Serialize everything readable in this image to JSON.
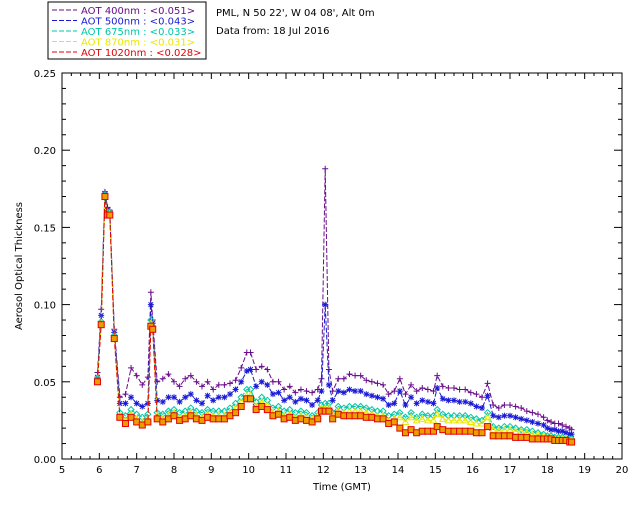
{
  "header": {
    "site": "PML, N 50 22', W 04 08', Alt 0m",
    "date": "Data from: 18 Jul 2016"
  },
  "chart_data": {
    "type": "line",
    "title": "",
    "xlabel": "Time (GMT)",
    "ylabel": "Aerosol Optical Thickness",
    "xlim": [
      5,
      20
    ],
    "ylim": [
      0,
      0.25
    ],
    "xticks": [
      "5",
      "6",
      "7",
      "8",
      "9",
      "10",
      "11",
      "12",
      "13",
      "14",
      "15",
      "16",
      "17",
      "18",
      "19",
      "20"
    ],
    "yticks": [
      "0.00",
      "0.05",
      "0.10",
      "0.15",
      "0.20",
      "0.25"
    ],
    "legend_position": "top-left outside plot",
    "x": [
      5.95,
      6.05,
      6.15,
      6.22,
      6.28,
      6.4,
      6.55,
      6.7,
      6.85,
      7.0,
      7.15,
      7.3,
      7.38,
      7.43,
      7.55,
      7.7,
      7.85,
      8.0,
      8.15,
      8.3,
      8.45,
      8.6,
      8.75,
      8.9,
      9.05,
      9.2,
      9.35,
      9.5,
      9.65,
      9.8,
      9.95,
      10.05,
      10.2,
      10.35,
      10.5,
      10.65,
      10.8,
      10.95,
      11.1,
      11.25,
      11.4,
      11.55,
      11.7,
      11.85,
      11.95,
      12.05,
      12.15,
      12.25,
      12.4,
      12.55,
      12.7,
      12.85,
      13.0,
      13.15,
      13.3,
      13.45,
      13.6,
      13.75,
      13.9,
      14.05,
      14.2,
      14.35,
      14.5,
      14.65,
      14.8,
      14.95,
      15.05,
      15.2,
      15.35,
      15.5,
      15.65,
      15.8,
      15.95,
      16.1,
      16.25,
      16.4,
      16.55,
      16.7,
      16.85,
      17.0,
      17.15,
      17.3,
      17.45,
      17.6,
      17.75,
      17.9,
      18.0,
      18.1,
      18.2,
      18.3,
      18.4,
      18.5,
      18.6,
      18.65
    ],
    "series": [
      {
        "name": "AOT  400nm : <0.051>",
        "color": "#6a0d8a",
        "marker": "plus",
        "values": [
          0.056,
          0.097,
          0.173,
          0.163,
          0.161,
          0.084,
          0.04,
          0.042,
          0.059,
          0.054,
          0.048,
          0.053,
          0.108,
          0.09,
          0.05,
          0.052,
          0.055,
          0.05,
          0.047,
          0.052,
          0.054,
          0.05,
          0.047,
          0.05,
          0.045,
          0.048,
          0.048,
          0.049,
          0.051,
          0.059,
          0.069,
          0.069,
          0.058,
          0.06,
          0.058,
          0.05,
          0.05,
          0.045,
          0.047,
          0.043,
          0.045,
          0.044,
          0.043,
          0.045,
          0.052,
          0.188,
          0.058,
          0.044,
          0.052,
          0.052,
          0.055,
          0.054,
          0.054,
          0.051,
          0.05,
          0.049,
          0.048,
          0.042,
          0.044,
          0.052,
          0.042,
          0.048,
          0.044,
          0.046,
          0.045,
          0.044,
          0.054,
          0.047,
          0.046,
          0.046,
          0.045,
          0.045,
          0.043,
          0.042,
          0.04,
          0.049,
          0.035,
          0.033,
          0.035,
          0.035,
          0.034,
          0.033,
          0.031,
          0.03,
          0.029,
          0.027,
          0.025,
          0.024,
          0.023,
          0.023,
          0.022,
          0.021,
          0.02,
          0.019
        ]
      },
      {
        "name": "AOT  500nm : <0.043>",
        "color": "#1a1ad6",
        "marker": "star",
        "values": [
          0.053,
          0.093,
          0.172,
          0.161,
          0.16,
          0.082,
          0.036,
          0.036,
          0.04,
          0.036,
          0.034,
          0.036,
          0.1,
          0.088,
          0.038,
          0.037,
          0.04,
          0.04,
          0.037,
          0.04,
          0.042,
          0.038,
          0.036,
          0.041,
          0.038,
          0.04,
          0.04,
          0.042,
          0.045,
          0.05,
          0.057,
          0.058,
          0.047,
          0.05,
          0.048,
          0.042,
          0.043,
          0.038,
          0.04,
          0.037,
          0.039,
          0.038,
          0.035,
          0.038,
          0.044,
          0.1,
          0.048,
          0.038,
          0.044,
          0.043,
          0.045,
          0.044,
          0.044,
          0.042,
          0.041,
          0.04,
          0.039,
          0.035,
          0.036,
          0.044,
          0.035,
          0.04,
          0.036,
          0.038,
          0.037,
          0.036,
          0.046,
          0.039,
          0.038,
          0.038,
          0.037,
          0.037,
          0.036,
          0.034,
          0.033,
          0.041,
          0.028,
          0.027,
          0.028,
          0.028,
          0.027,
          0.026,
          0.025,
          0.024,
          0.023,
          0.022,
          0.02,
          0.019,
          0.019,
          0.018,
          0.018,
          0.017,
          0.016,
          0.016
        ]
      },
      {
        "name": "AOT  675nm : <0.033>",
        "color": "#00c7a8",
        "marker": "diamond",
        "values": [
          0.052,
          0.089,
          0.171,
          0.16,
          0.16,
          0.08,
          0.03,
          0.028,
          0.032,
          0.029,
          0.027,
          0.029,
          0.09,
          0.086,
          0.03,
          0.029,
          0.031,
          0.032,
          0.03,
          0.031,
          0.033,
          0.031,
          0.03,
          0.032,
          0.031,
          0.031,
          0.031,
          0.033,
          0.036,
          0.04,
          0.045,
          0.045,
          0.037,
          0.04,
          0.038,
          0.033,
          0.034,
          0.031,
          0.032,
          0.03,
          0.031,
          0.03,
          0.028,
          0.03,
          0.035,
          0.036,
          0.036,
          0.03,
          0.034,
          0.033,
          0.034,
          0.034,
          0.034,
          0.033,
          0.032,
          0.031,
          0.031,
          0.028,
          0.029,
          0.03,
          0.027,
          0.03,
          0.027,
          0.029,
          0.028,
          0.028,
          0.032,
          0.029,
          0.028,
          0.028,
          0.028,
          0.028,
          0.027,
          0.026,
          0.025,
          0.03,
          0.021,
          0.02,
          0.021,
          0.021,
          0.02,
          0.019,
          0.019,
          0.018,
          0.017,
          0.016,
          0.015,
          0.015,
          0.014,
          0.014,
          0.014,
          0.013,
          0.013,
          0.013
        ]
      },
      {
        "name": "AOT  870nm : <0.031>",
        "color": "#e8e800",
        "marker": "triangle",
        "values": [
          0.051,
          0.088,
          0.17,
          0.159,
          0.159,
          0.079,
          0.028,
          0.025,
          0.029,
          0.026,
          0.024,
          0.026,
          0.088,
          0.085,
          0.028,
          0.026,
          0.028,
          0.03,
          0.027,
          0.028,
          0.03,
          0.028,
          0.027,
          0.029,
          0.028,
          0.028,
          0.028,
          0.03,
          0.033,
          0.037,
          0.041,
          0.041,
          0.034,
          0.037,
          0.035,
          0.03,
          0.031,
          0.028,
          0.029,
          0.027,
          0.028,
          0.027,
          0.026,
          0.028,
          0.033,
          0.033,
          0.033,
          0.028,
          0.031,
          0.03,
          0.031,
          0.031,
          0.031,
          0.03,
          0.029,
          0.028,
          0.028,
          0.025,
          0.026,
          0.027,
          0.024,
          0.027,
          0.025,
          0.026,
          0.025,
          0.025,
          0.029,
          0.026,
          0.025,
          0.025,
          0.025,
          0.025,
          0.024,
          0.023,
          0.023,
          0.027,
          0.019,
          0.018,
          0.019,
          0.019,
          0.018,
          0.018,
          0.017,
          0.016,
          0.016,
          0.015,
          0.014,
          0.014,
          0.013,
          0.013,
          0.013,
          0.013,
          0.012,
          0.012
        ]
      },
      {
        "name": "AOT 1020nm : <0.028>",
        "color": "#e60000",
        "marker": "square",
        "values": [
          0.05,
          0.087,
          0.17,
          0.158,
          0.158,
          0.078,
          0.027,
          0.023,
          0.027,
          0.024,
          0.022,
          0.024,
          0.086,
          0.084,
          0.026,
          0.024,
          0.026,
          0.028,
          0.025,
          0.026,
          0.028,
          0.026,
          0.025,
          0.027,
          0.026,
          0.026,
          0.026,
          0.028,
          0.03,
          0.034,
          0.039,
          0.039,
          0.032,
          0.034,
          0.032,
          0.028,
          0.029,
          0.026,
          0.027,
          0.025,
          0.026,
          0.025,
          0.024,
          0.026,
          0.031,
          0.031,
          0.031,
          0.026,
          0.029,
          0.028,
          0.028,
          0.028,
          0.028,
          0.027,
          0.027,
          0.026,
          0.026,
          0.023,
          0.024,
          0.02,
          0.017,
          0.019,
          0.017,
          0.018,
          0.018,
          0.018,
          0.021,
          0.019,
          0.018,
          0.018,
          0.018,
          0.018,
          0.018,
          0.017,
          0.017,
          0.021,
          0.015,
          0.015,
          0.015,
          0.015,
          0.014,
          0.014,
          0.014,
          0.013,
          0.013,
          0.013,
          0.013,
          0.013,
          0.012,
          0.012,
          0.012,
          0.012,
          0.011,
          0.011
        ]
      }
    ]
  }
}
